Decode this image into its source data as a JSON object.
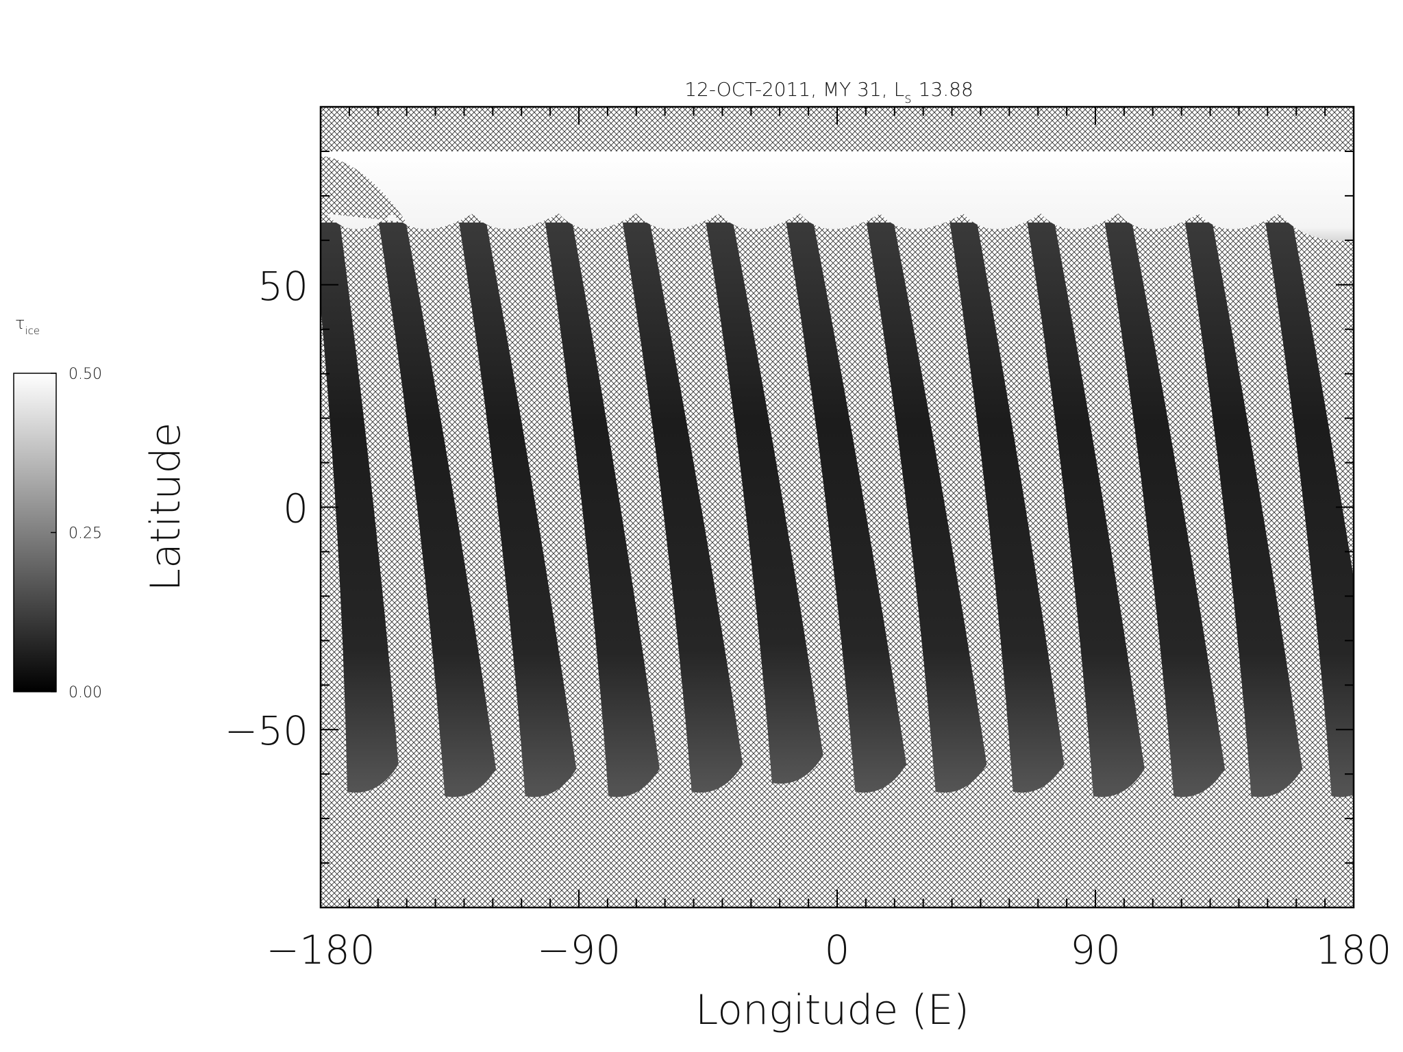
{
  "chart_data": {
    "type": "heatmap",
    "title": "12-OCT-2011, MY 31,  L",
    "title_subscript": "s",
    "title_value": "13.88",
    "xlabel": "Longitude (E)",
    "ylabel": "Latitude",
    "xlim": [
      -180,
      180
    ],
    "ylim": [
      -90,
      90
    ],
    "xticks": [
      -180,
      -90,
      0,
      90,
      180
    ],
    "xtick_labels": [
      "−180",
      "−90",
      "0",
      "90",
      "180"
    ],
    "yticks": [
      50,
      0,
      -50
    ],
    "ytick_labels": [
      "50",
      "0",
      "−50"
    ],
    "x_minor_step": 10,
    "y_minor_step": 10,
    "colorbar": {
      "label": "τ",
      "label_subscript": "ice",
      "range": [
        0,
        0.5
      ],
      "ticks": [
        0.5,
        0.25,
        0.0
      ],
      "tick_labels": [
        "0.50",
        "0.25",
        "0.00"
      ],
      "color_low": "#000000",
      "color_high": "#ffffff"
    },
    "no_data_pattern": "cross-hatch",
    "polar_cap_lat": 60,
    "swaths": [
      {
        "top_lon": -178,
        "bottom_lon": -160,
        "bottom_lat": -64
      },
      {
        "top_lon": -155,
        "bottom_lon": -126,
        "bottom_lat": -65
      },
      {
        "top_lon": -127,
        "bottom_lon": -98,
        "bottom_lat": -65
      },
      {
        "top_lon": -97,
        "bottom_lon": -69,
        "bottom_lat": -65
      },
      {
        "top_lon": -70,
        "bottom_lon": -40,
        "bottom_lat": -64
      },
      {
        "top_lon": -41,
        "bottom_lon": -12,
        "bottom_lat": -62
      },
      {
        "top_lon": -13,
        "bottom_lon": 17,
        "bottom_lat": -64
      },
      {
        "top_lon": 15,
        "bottom_lon": 45,
        "bottom_lat": -64
      },
      {
        "top_lon": 44,
        "bottom_lon": 72,
        "bottom_lat": -64
      },
      {
        "top_lon": 71,
        "bottom_lon": 100,
        "bottom_lat": -65
      },
      {
        "top_lon": 98,
        "bottom_lon": 128,
        "bottom_lat": -65
      },
      {
        "top_lon": 126,
        "bottom_lon": 155,
        "bottom_lat": -65
      },
      {
        "top_lon": 154,
        "bottom_lon": 183,
        "bottom_lat": -65
      }
    ]
  }
}
